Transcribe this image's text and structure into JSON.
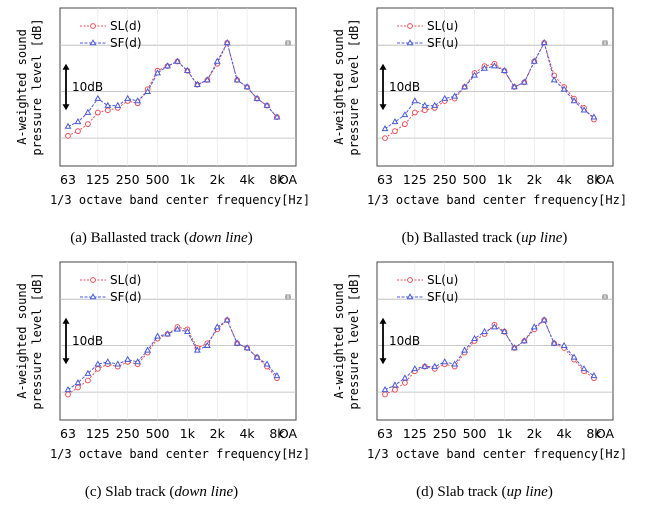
{
  "shared": {
    "ylabel_line1": "A-weighted sound",
    "ylabel_line2": "pressure level [dB]",
    "xlabel": "1/3 octave band center frequency[Hz]",
    "xtick_labels": [
      "63",
      "125",
      "250",
      "500",
      "1k",
      "2k",
      "4k",
      "8k",
      "OA"
    ],
    "scale_label": "10dB",
    "colors": {
      "SL": "#e8505b",
      "SF": "#4a5ad8",
      "grid": "#b8b8b8",
      "oa": "#888888"
    }
  },
  "chart_data": [
    {
      "type": "line",
      "panel": "a",
      "caption_prefix": "(a) Ballasted track (",
      "caption_italic": "down line",
      "caption_suffix": ")",
      "x": [
        "63",
        "80",
        "100",
        "125",
        "160",
        "200",
        "250",
        "315",
        "400",
        "500",
        "630",
        "800",
        "1k",
        "1.25k",
        "1.6k",
        "2k",
        "2.5k",
        "3.15k",
        "4k",
        "5k",
        "6.3k",
        "8k"
      ],
      "series": [
        {
          "name": "SL(d)",
          "marker": "circle",
          "values": [
            -9.5,
            -8.5,
            -7.0,
            -4.5,
            -4.0,
            -3.5,
            -2.0,
            -2.5,
            0.5,
            4.5,
            5.5,
            6.5,
            4.5,
            1.5,
            2.5,
            6.0,
            10.5,
            2.5,
            1.0,
            -1.5,
            -3.0,
            -5.5
          ]
        },
        {
          "name": "SF(d)",
          "marker": "triangle",
          "values": [
            -7.5,
            -6.5,
            -4.5,
            -1.5,
            -3.0,
            -3.0,
            -1.5,
            -2.0,
            0.0,
            4.0,
            5.5,
            6.5,
            4.5,
            1.5,
            2.5,
            6.5,
            10.5,
            2.5,
            1.0,
            -1.5,
            -3.0,
            -5.5
          ]
        }
      ],
      "oa_marker": true
    },
    {
      "type": "line",
      "panel": "b",
      "caption_prefix": "(b) Ballasted track (",
      "caption_italic": "up line",
      "caption_suffix": ")",
      "x": [
        "63",
        "80",
        "100",
        "125",
        "160",
        "200",
        "250",
        "315",
        "400",
        "500",
        "630",
        "800",
        "1k",
        "1.25k",
        "1.6k",
        "2k",
        "2.5k",
        "3.15k",
        "4k",
        "5k",
        "6.3k",
        "8k"
      ],
      "series": [
        {
          "name": "SL(u)",
          "marker": "circle",
          "values": [
            -10.0,
            -8.5,
            -7.0,
            -4.5,
            -4.0,
            -3.5,
            -2.0,
            -1.5,
            1.0,
            4.0,
            5.5,
            6.0,
            4.5,
            1.0,
            2.0,
            6.5,
            10.5,
            3.5,
            1.0,
            -1.5,
            -3.5,
            -6.0
          ]
        },
        {
          "name": "SF(u)",
          "marker": "triangle",
          "values": [
            -8.0,
            -6.5,
            -5.0,
            -2.0,
            -3.0,
            -3.0,
            -1.5,
            -1.0,
            1.0,
            3.5,
            5.0,
            5.5,
            4.5,
            1.0,
            2.0,
            6.5,
            10.5,
            2.5,
            0.5,
            -2.0,
            -4.0,
            -5.5
          ]
        }
      ],
      "oa_marker": true
    },
    {
      "type": "line",
      "panel": "c",
      "caption_prefix": "(c) Slab track (",
      "caption_italic": "down line",
      "caption_suffix": ")",
      "x": [
        "63",
        "80",
        "100",
        "125",
        "160",
        "200",
        "250",
        "315",
        "400",
        "500",
        "630",
        "800",
        "1k",
        "1.25k",
        "1.6k",
        "2k",
        "2.5k",
        "3.15k",
        "4k",
        "5k",
        "6.3k",
        "8k"
      ],
      "series": [
        {
          "name": "SL(d)",
          "marker": "circle",
          "values": [
            -10.5,
            -9.0,
            -7.5,
            -5.0,
            -4.0,
            -4.5,
            -3.5,
            -4.0,
            -1.5,
            1.5,
            2.5,
            4.0,
            3.5,
            -0.5,
            0.5,
            3.5,
            5.5,
            0.5,
            -0.5,
            -2.5,
            -4.5,
            -7.0
          ]
        },
        {
          "name": "SF(d)",
          "marker": "triangle",
          "values": [
            -9.5,
            -8.0,
            -6.0,
            -4.0,
            -3.5,
            -4.0,
            -3.0,
            -3.5,
            -1.0,
            2.0,
            2.5,
            3.5,
            3.0,
            -1.0,
            0.0,
            4.0,
            5.5,
            0.5,
            -0.5,
            -2.5,
            -4.0,
            -6.5
          ]
        }
      ],
      "oa_marker": true
    },
    {
      "type": "line",
      "panel": "d",
      "caption_prefix": "(d) Slab track (",
      "caption_italic": "up line",
      "caption_suffix": ")",
      "x": [
        "63",
        "80",
        "100",
        "125",
        "160",
        "200",
        "250",
        "315",
        "400",
        "500",
        "630",
        "800",
        "1k",
        "1.25k",
        "1.6k",
        "2k",
        "2.5k",
        "3.15k",
        "4k",
        "5k",
        "6.3k",
        "8k"
      ],
      "series": [
        {
          "name": "SL(u)",
          "marker": "circle",
          "values": [
            -10.5,
            -9.5,
            -8.0,
            -5.5,
            -4.5,
            -5.0,
            -4.0,
            -4.5,
            -1.5,
            1.0,
            2.5,
            4.5,
            3.0,
            -0.5,
            1.0,
            3.5,
            5.5,
            0.5,
            -0.5,
            -3.0,
            -5.5,
            -7.0
          ]
        },
        {
          "name": "SF(u)",
          "marker": "triangle",
          "values": [
            -9.5,
            -8.5,
            -7.0,
            -5.0,
            -4.5,
            -4.5,
            -3.5,
            -4.0,
            -1.0,
            1.5,
            3.0,
            4.0,
            3.0,
            -0.5,
            1.0,
            4.0,
            5.5,
            0.5,
            0.0,
            -2.5,
            -5.0,
            -6.5
          ]
        }
      ],
      "oa_marker": true
    }
  ]
}
